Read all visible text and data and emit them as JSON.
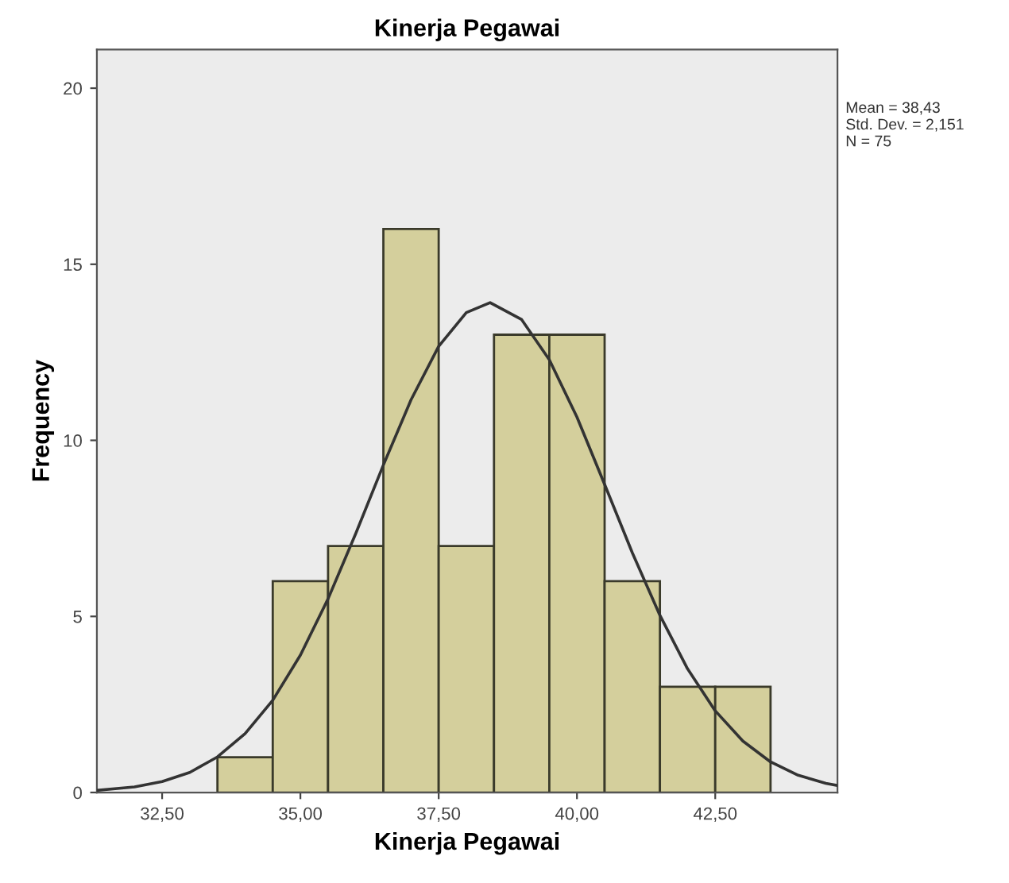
{
  "chart_data": {
    "type": "histogram",
    "title": "Kinerja Pegawai",
    "xlabel": "Kinerja Pegawai",
    "ylabel": "Frequency",
    "annotations": [
      "Mean = 38,43",
      "Std. Dev. = 2,151",
      "N = 75"
    ],
    "series": [
      {
        "color": "#d4cf9c",
        "bins": [
          33.5,
          34.5,
          35.5,
          36.5,
          37.5,
          38.5,
          39.5,
          40.5,
          41.5,
          42.5,
          43.5
        ],
        "values": [
          1,
          6,
          7,
          16,
          7,
          13,
          13,
          6,
          3,
          3
        ]
      },
      {
        "type": "line",
        "color": "#333333",
        "x": [
          31.32,
          32,
          32.5,
          33,
          33.5,
          34,
          34.5,
          35,
          35.5,
          36,
          36.5,
          37,
          37.5,
          38,
          38.43,
          39,
          39.5,
          40,
          40.5,
          41,
          41.5,
          42,
          42.5,
          43,
          43.5,
          44,
          44.5,
          44.71
        ],
        "values": [
          0.06,
          0.16,
          0.31,
          0.57,
          1.01,
          1.67,
          2.62,
          3.9,
          5.5,
          7.35,
          9.3,
          11.15,
          12.67,
          13.63,
          13.91,
          13.43,
          12.29,
          10.66,
          8.75,
          6.81,
          5.03,
          3.51,
          2.32,
          1.46,
          0.87,
          0.49,
          0.26,
          0.2
        ]
      }
    ],
    "xlim": [
      31.32,
      44.71
    ],
    "ylim": [
      0,
      21.1
    ],
    "xticks": [
      {
        "value": 32.5,
        "label": "32,50"
      },
      {
        "value": 35,
        "label": "35,00"
      },
      {
        "value": 37.5,
        "label": "37,50"
      },
      {
        "value": 40,
        "label": "40,00"
      },
      {
        "value": 42.5,
        "label": "42,50"
      }
    ],
    "yticks": [
      0,
      5,
      10,
      15,
      20
    ],
    "grid": false,
    "legend": false
  }
}
